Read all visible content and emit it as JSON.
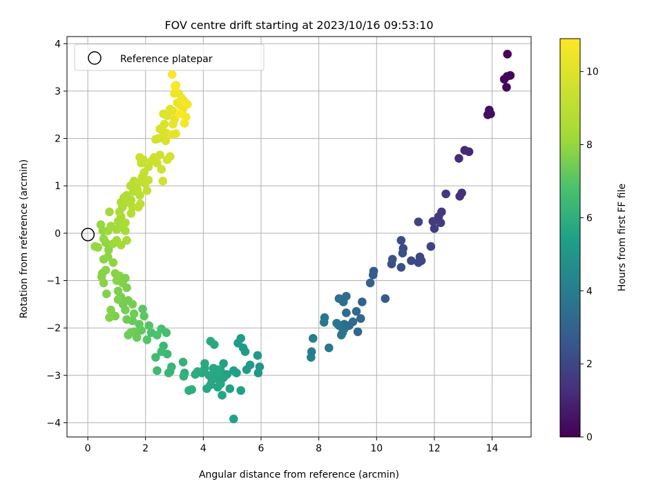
{
  "chart_data": {
    "type": "scatter",
    "title": "FOV centre drift starting at 2023/10/16 09:53:10",
    "xlabel": "Angular distance from reference (arcmin)",
    "ylabel": "Rotation from reference (arcmin)",
    "xlim": [
      -0.72,
      15.35
    ],
    "ylim": [
      -4.3,
      4.15
    ],
    "xticks": [
      0,
      2,
      4,
      6,
      8,
      10,
      12,
      14
    ],
    "yticks": [
      -4,
      -3,
      -2,
      -1,
      0,
      1,
      2,
      3,
      4
    ],
    "grid": true,
    "legend": {
      "placement": "top-left",
      "entries": [
        "Reference platepar"
      ]
    },
    "reference_point": {
      "x": 0,
      "y": 0,
      "label": "Reference platepar"
    },
    "colorbar": {
      "label": "Hours from first FF file",
      "range": [
        0,
        10.9
      ],
      "ticks": [
        0,
        2,
        4,
        6,
        8,
        10
      ],
      "colormap": "viridis"
    },
    "series": [
      {
        "color_value": "hours",
        "points": [
          [
            14.53,
            3.78,
            0.1
          ],
          [
            14.42,
            3.25,
            0.2
          ],
          [
            14.52,
            3.31,
            0.2
          ],
          [
            14.63,
            3.33,
            0.2
          ],
          [
            14.5,
            3.08,
            0.2
          ],
          [
            13.9,
            2.6,
            0.4
          ],
          [
            13.95,
            2.52,
            0.4
          ],
          [
            13.85,
            2.5,
            0.4
          ],
          [
            13.05,
            1.75,
            1.1
          ],
          [
            13.2,
            1.72,
            1.1
          ],
          [
            12.85,
            1.58,
            1.2
          ],
          [
            12.95,
            0.85,
            1.3
          ],
          [
            12.88,
            0.78,
            1.3
          ],
          [
            12.4,
            0.83,
            1.5
          ],
          [
            12.25,
            0.45,
            1.6
          ],
          [
            12.15,
            0.35,
            1.6
          ],
          [
            12.22,
            0.22,
            1.7
          ],
          [
            11.95,
            0.25,
            1.7
          ],
          [
            12.0,
            0.1,
            1.7
          ],
          [
            11.88,
            -0.28,
            1.9
          ],
          [
            11.45,
            0.24,
            1.9
          ],
          [
            11.55,
            -0.58,
            2.0
          ],
          [
            11.5,
            -0.5,
            2.0
          ],
          [
            11.45,
            -0.62,
            2.0
          ],
          [
            11.2,
            -0.58,
            2.1
          ],
          [
            10.92,
            -0.32,
            2.2
          ],
          [
            10.85,
            -0.15,
            2.2
          ],
          [
            10.9,
            -0.42,
            2.3
          ],
          [
            10.85,
            -0.72,
            2.3
          ],
          [
            10.55,
            -0.55,
            2.4
          ],
          [
            10.52,
            -0.65,
            2.4
          ],
          [
            10.3,
            -1.38,
            2.7
          ],
          [
            9.9,
            -0.8,
            2.7
          ],
          [
            9.88,
            -0.88,
            2.8
          ],
          [
            9.78,
            -1.05,
            2.9
          ],
          [
            9.5,
            -1.45,
            3.0
          ],
          [
            9.45,
            -1.8,
            3.1
          ],
          [
            9.35,
            -2.08,
            3.1
          ],
          [
            9.3,
            -1.65,
            3.2
          ],
          [
            9.18,
            -1.87,
            3.3
          ],
          [
            9.05,
            -1.95,
            3.3
          ],
          [
            8.95,
            -1.68,
            3.4
          ],
          [
            8.88,
            -1.92,
            3.4
          ],
          [
            8.95,
            -1.33,
            3.4
          ],
          [
            8.85,
            -1.45,
            3.5
          ],
          [
            8.7,
            -1.38,
            3.5
          ],
          [
            8.82,
            -2.1,
            3.6
          ],
          [
            8.7,
            -1.95,
            3.6
          ],
          [
            8.88,
            -2.02,
            3.6
          ],
          [
            8.78,
            -2.15,
            3.7
          ],
          [
            8.62,
            -1.9,
            3.7
          ],
          [
            8.35,
            -2.42,
            3.8
          ],
          [
            8.2,
            -1.78,
            3.8
          ],
          [
            8.18,
            -1.88,
            3.8
          ],
          [
            7.8,
            -2.22,
            4.0
          ],
          [
            7.75,
            -2.5,
            4.1
          ],
          [
            7.73,
            -2.62,
            4.1
          ],
          [
            5.95,
            -2.82,
            5.0
          ],
          [
            5.9,
            -2.95,
            5.0
          ],
          [
            5.88,
            -2.58,
            5.1
          ],
          [
            5.62,
            -2.78,
            5.1
          ],
          [
            5.5,
            -2.88,
            5.2
          ],
          [
            5.45,
            -2.5,
            5.2
          ],
          [
            5.38,
            -2.42,
            5.2
          ],
          [
            5.3,
            -2.22,
            5.3
          ],
          [
            5.2,
            -2.32,
            5.3
          ],
          [
            5.15,
            -2.95,
            5.4
          ],
          [
            5.05,
            -2.9,
            5.4
          ],
          [
            5.3,
            -3.32,
            5.5
          ],
          [
            5.05,
            -3.92,
            5.5
          ],
          [
            4.92,
            -3.28,
            5.5
          ],
          [
            4.82,
            -2.98,
            5.5
          ],
          [
            4.7,
            -2.75,
            5.5
          ],
          [
            4.6,
            -2.9,
            5.6
          ],
          [
            4.55,
            -3.1,
            5.6
          ],
          [
            4.5,
            -3.25,
            5.6
          ],
          [
            4.65,
            -3.42,
            5.6
          ],
          [
            4.45,
            -3.05,
            5.6
          ],
          [
            4.4,
            -2.95,
            5.6
          ],
          [
            4.35,
            -2.85,
            5.7
          ],
          [
            4.5,
            -2.88,
            5.7
          ],
          [
            4.3,
            -3.1,
            5.7
          ],
          [
            4.2,
            -3.0,
            5.7
          ],
          [
            4.12,
            -3.28,
            5.7
          ],
          [
            4.25,
            -3.2,
            5.7
          ],
          [
            4.38,
            -2.35,
            5.8
          ],
          [
            4.25,
            -2.28,
            5.8
          ],
          [
            4.55,
            -2.98,
            5.7
          ],
          [
            4.6,
            -3.18,
            5.7
          ],
          [
            4.7,
            -3.05,
            5.6
          ],
          [
            4.05,
            -2.85,
            5.8
          ],
          [
            4.05,
            -2.75,
            5.8
          ],
          [
            3.95,
            -2.95,
            5.8
          ],
          [
            3.8,
            -2.92,
            5.9
          ],
          [
            3.72,
            -2.98,
            5.9
          ],
          [
            3.6,
            -3.3,
            6.0
          ],
          [
            3.5,
            -3.32,
            6.0
          ],
          [
            3.35,
            -2.95,
            6.0
          ],
          [
            3.3,
            -2.72,
            6.1
          ],
          [
            3.32,
            -3.02,
            6.1
          ],
          [
            2.85,
            -2.92,
            6.3
          ],
          [
            2.9,
            -2.82,
            6.3
          ],
          [
            2.8,
            -2.95,
            6.3
          ],
          [
            2.75,
            -2.55,
            6.4
          ],
          [
            2.62,
            -2.38,
            6.4
          ],
          [
            2.55,
            -2.5,
            6.5
          ],
          [
            2.4,
            -2.9,
            6.5
          ],
          [
            2.35,
            -2.62,
            6.6
          ],
          [
            2.72,
            -2.1,
            6.7
          ],
          [
            2.55,
            -2.02,
            6.7
          ],
          [
            2.4,
            -2.15,
            6.8
          ],
          [
            2.2,
            -2.1,
            6.8
          ],
          [
            2.05,
            -2.25,
            7.0
          ],
          [
            2.12,
            -1.95,
            7.0
          ],
          [
            1.95,
            -1.75,
            7.1
          ],
          [
            1.9,
            -1.6,
            7.1
          ],
          [
            1.85,
            -2.05,
            7.2
          ],
          [
            1.78,
            -1.92,
            7.2
          ],
          [
            1.7,
            -2.2,
            7.3
          ],
          [
            1.62,
            -2.08,
            7.3
          ],
          [
            1.55,
            -1.85,
            7.3
          ],
          [
            1.48,
            -2.1,
            7.4
          ],
          [
            1.4,
            -2.15,
            7.4
          ],
          [
            1.35,
            -1.82,
            7.4
          ],
          [
            1.3,
            -1.62,
            7.5
          ],
          [
            1.22,
            -1.5,
            7.5
          ],
          [
            1.15,
            -1.35,
            7.5
          ],
          [
            1.05,
            -1.22,
            7.6
          ],
          [
            1.55,
            -1.5,
            7.5
          ],
          [
            1.6,
            -1.7,
            7.4
          ],
          [
            1.4,
            -1.42,
            7.5
          ],
          [
            1.05,
            -1.4,
            7.6
          ],
          [
            0.95,
            -1.75,
            7.6
          ],
          [
            0.8,
            -1.62,
            7.7
          ],
          [
            0.75,
            -1.78,
            7.7
          ],
          [
            0.65,
            -1.28,
            7.7
          ],
          [
            0.55,
            -1.05,
            7.8
          ],
          [
            0.48,
            -0.92,
            7.8
          ],
          [
            0.5,
            -0.85,
            7.8
          ],
          [
            0.62,
            -0.78,
            7.8
          ],
          [
            0.55,
            -0.55,
            7.8
          ],
          [
            0.7,
            -0.5,
            7.9
          ],
          [
            0.72,
            -0.35,
            7.9
          ],
          [
            0.62,
            -0.2,
            7.9
          ],
          [
            0.55,
            -0.12,
            8.0
          ],
          [
            0.52,
            0.05,
            8.0
          ],
          [
            0.45,
            0.18,
            8.0
          ],
          [
            0.7,
            0.05,
            8.1
          ],
          [
            0.8,
            0.15,
            8.2
          ],
          [
            0.75,
            0.45,
            8.2
          ],
          [
            0.35,
            -0.3,
            8.0
          ],
          [
            0.25,
            -0.28,
            8.0
          ],
          [
            0.88,
            -0.62,
            7.9
          ],
          [
            0.95,
            -0.85,
            7.8
          ],
          [
            1.0,
            -1.0,
            7.8
          ],
          [
            1.1,
            -0.9,
            7.8
          ],
          [
            1.2,
            -1.05,
            7.7
          ],
          [
            1.3,
            -0.95,
            7.7
          ],
          [
            1.35,
            -1.15,
            7.6
          ],
          [
            0.88,
            -0.22,
            8.1
          ],
          [
            1.0,
            -0.15,
            8.2
          ],
          [
            1.0,
            0.08,
            8.2
          ],
          [
            1.05,
            0.25,
            8.3
          ],
          [
            1.15,
            0.35,
            8.3
          ],
          [
            1.2,
            0.12,
            8.4
          ],
          [
            1.3,
            0.05,
            8.4
          ],
          [
            1.35,
            -0.15,
            8.4
          ],
          [
            1.15,
            -0.25,
            8.3
          ],
          [
            1.3,
            0.22,
            8.5
          ],
          [
            1.1,
            0.45,
            8.5
          ],
          [
            1.2,
            0.55,
            8.5
          ],
          [
            1.15,
            0.65,
            8.6
          ],
          [
            1.25,
            0.75,
            8.6
          ],
          [
            1.35,
            0.8,
            8.7
          ],
          [
            1.4,
            0.65,
            8.7
          ],
          [
            1.5,
            0.7,
            8.7
          ],
          [
            1.55,
            0.55,
            8.8
          ],
          [
            1.5,
            0.42,
            8.8
          ],
          [
            1.58,
            0.88,
            8.8
          ],
          [
            1.48,
            1.0,
            8.9
          ],
          [
            1.6,
            1.1,
            8.9
          ],
          [
            1.7,
            1.05,
            9.0
          ],
          [
            1.72,
            0.92,
            9.0
          ],
          [
            1.8,
            0.8,
            9.0
          ],
          [
            1.82,
            0.62,
            9.1
          ],
          [
            1.75,
            0.55,
            9.1
          ],
          [
            1.88,
            1.18,
            9.1
          ],
          [
            1.95,
            1.28,
            9.2
          ],
          [
            1.98,
            1.05,
            9.2
          ],
          [
            2.05,
            0.9,
            9.2
          ],
          [
            2.1,
            1.12,
            9.3
          ],
          [
            2.1,
            1.4,
            9.3
          ],
          [
            1.85,
            1.48,
            9.3
          ],
          [
            1.8,
            1.6,
            9.4
          ],
          [
            1.92,
            1.55,
            9.4
          ],
          [
            2.2,
            1.52,
            9.4
          ],
          [
            2.3,
            1.6,
            9.5
          ],
          [
            2.4,
            1.48,
            9.5
          ],
          [
            2.55,
            1.35,
            9.6
          ],
          [
            2.6,
            1.1,
            9.6
          ],
          [
            2.5,
            1.65,
            9.6
          ],
          [
            2.75,
            1.55,
            9.7
          ],
          [
            2.85,
            1.62,
            9.7
          ],
          [
            2.45,
            2.0,
            9.7
          ],
          [
            2.35,
            1.98,
            9.7
          ],
          [
            2.6,
            2.05,
            9.8
          ],
          [
            2.7,
            1.95,
            9.8
          ],
          [
            2.5,
            2.2,
            9.8
          ],
          [
            2.65,
            2.3,
            9.9
          ],
          [
            2.7,
            2.12,
            9.9
          ],
          [
            2.62,
            2.52,
            10.0
          ],
          [
            2.75,
            2.48,
            10.0
          ],
          [
            2.85,
            2.62,
            10.1
          ],
          [
            2.95,
            2.58,
            10.1
          ],
          [
            3.0,
            2.4,
            10.2
          ],
          [
            3.05,
            2.1,
            10.2
          ],
          [
            2.9,
            2.08,
            10.2
          ],
          [
            2.95,
            2.3,
            10.3
          ],
          [
            3.1,
            2.75,
            10.3
          ],
          [
            3.2,
            2.7,
            10.4
          ],
          [
            3.3,
            2.62,
            10.4
          ],
          [
            3.25,
            2.85,
            10.4
          ],
          [
            3.15,
            2.95,
            10.5
          ],
          [
            3.05,
            3.12,
            10.5
          ],
          [
            3.0,
            2.95,
            10.5
          ],
          [
            3.35,
            2.78,
            10.6
          ],
          [
            3.4,
            2.45,
            10.6
          ],
          [
            3.35,
            2.32,
            10.7
          ],
          [
            3.45,
            2.72,
            10.7
          ],
          [
            2.92,
            3.35,
            10.8
          ],
          [
            3.02,
            3.1,
            10.8
          ],
          [
            3.18,
            2.52,
            10.9
          ]
        ]
      }
    ]
  }
}
